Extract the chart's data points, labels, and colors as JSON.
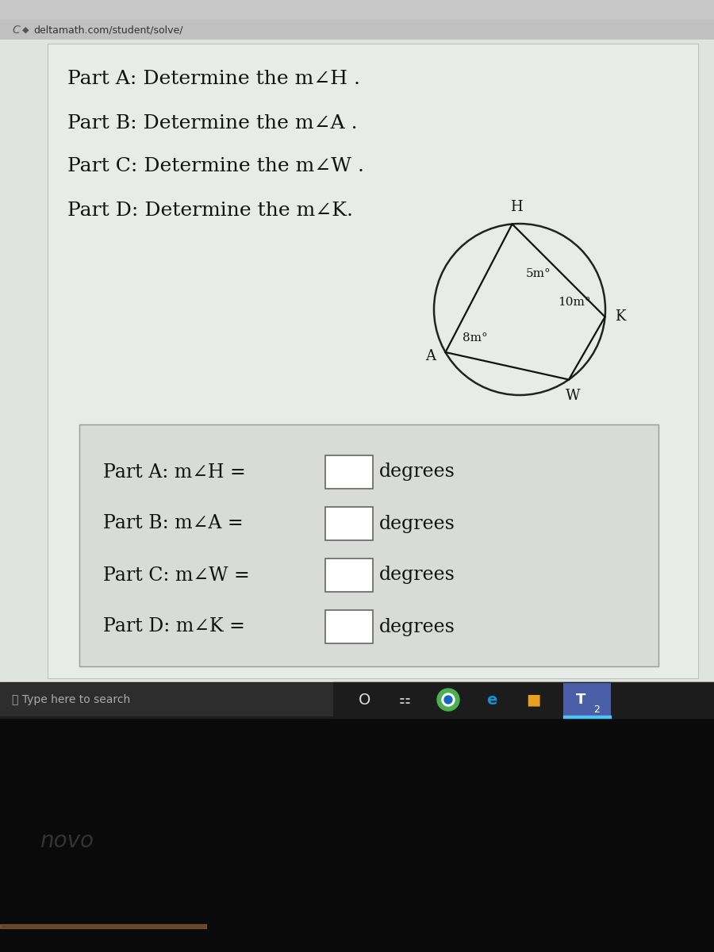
{
  "title_lines": [
    "Part A: Determine the m∠H .",
    "Part B: Determine the m∠A .",
    "Part C: Determine the m∠W .",
    "Part D: Determine the m∠K."
  ],
  "answer_lines": [
    "Part A: m∠H =",
    "Part B: m∠A =",
    "Part C: m∠W =",
    "Part D: m∠K ="
  ],
  "H_label": "H",
  "A_label": "A",
  "W_label": "W",
  "K_label": "K",
  "arc_5m_label": "5m°",
  "arc_8m_label": "8m°",
  "arc_10m_label": "10m°",
  "navbar_text": "deltamath.com/student/solve/",
  "bg_browser": "#d5d5d5",
  "bg_content": "#e0e4e0",
  "bg_panel": "#dde0dd",
  "bg_taskbar": "#1e1e1e",
  "bg_bottom": "#0a0a0a",
  "taskbar_search_bg": "#2e2e2e",
  "text_dark": "#111111",
  "text_gray": "#cccccc",
  "circle_color": "#222222",
  "line_color": "#111111",
  "input_box_color": "#999999",
  "answer_panel_bg": "#d8dbd8"
}
